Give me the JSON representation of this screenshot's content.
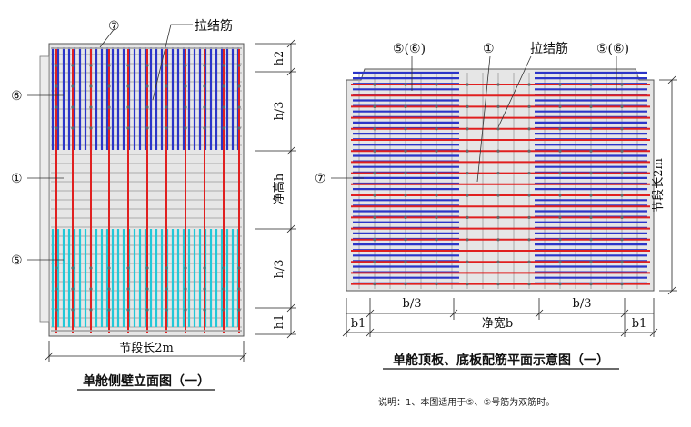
{
  "left_view": {
    "labels": {
      "callout_7": "⑦",
      "tie_bar": "拉结筋",
      "callout_6": "⑥",
      "callout_1": "①",
      "callout_5": "⑤"
    },
    "dims": {
      "h2": "h2",
      "h_third_top": "h/3",
      "clear_height": "净高h",
      "h_third_bottom": "h/3",
      "h1": "h1",
      "segment_length": "节段长2m"
    },
    "caption": "单舱侧壁立面图（一）"
  },
  "right_view": {
    "labels": {
      "callout_56_left": "⑤(⑥)",
      "callout_1": "①",
      "tie_bar": "拉结筋",
      "callout_56_right": "⑤(⑥)",
      "callout_7": "⑦"
    },
    "dims": {
      "segment_length": "节段长2m",
      "b_third_left": "b/3",
      "b_third_right": "b/3",
      "b1_left": "b1",
      "clear_width": "净宽b",
      "b1_right": "b1"
    },
    "caption": "单舱顶板、底板配筋平面示意图（一）"
  },
  "note": "说明：1、本图适用于⑤、⑥号筋为双筋时。",
  "colors": {
    "red_bar": "#e02020",
    "blue_bar": "#2b35c8",
    "cyan_bar": "#22c8d8",
    "gray_bar": "#a9a9a9",
    "concrete": "#e6e6e6",
    "outline": "#555555"
  }
}
